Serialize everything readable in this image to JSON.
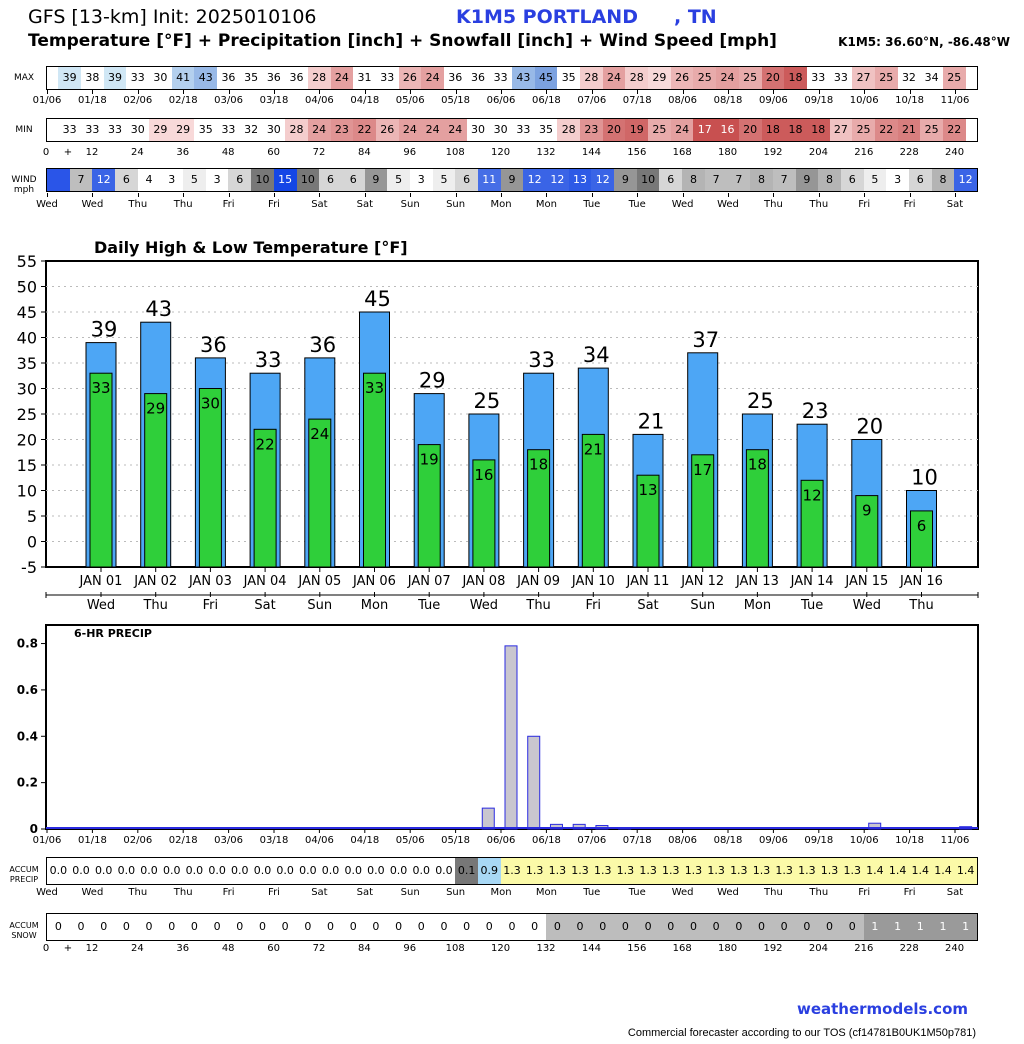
{
  "header": {
    "title": "GFS [13-km] Init: 2025010106",
    "station": "K1M5 PORTLAND",
    "state": ", TN",
    "subtitle": "Temperature [°F] + Precipitation [inch] + Snowfall [inch] + Wind Speed [mph]",
    "coords": "K1M5: 36.60°N, -86.48°W"
  },
  "strips": {
    "max_label": "MAX",
    "min_label": "MIN",
    "wind_label": "WIND mph",
    "max_values": [
      39,
      38,
      39,
      33,
      30,
      41,
      43,
      36,
      35,
      36,
      36,
      28,
      24,
      31,
      33,
      26,
      24,
      36,
      36,
      33,
      43,
      45,
      35,
      28,
      24,
      28,
      29,
      26,
      25,
      24,
      25,
      20,
      18,
      33,
      33,
      27,
      25,
      32,
      34,
      25
    ],
    "min_values": [
      33,
      33,
      33,
      30,
      29,
      29,
      35,
      33,
      32,
      30,
      28,
      24,
      23,
      22,
      26,
      24,
      24,
      24,
      30,
      30,
      33,
      35,
      28,
      23,
      20,
      19,
      25,
      24,
      17,
      16,
      20,
      18,
      18,
      18,
      27,
      25,
      22,
      21,
      25,
      22
    ],
    "wind_values": [
      null,
      7,
      12,
      6,
      4,
      3,
      5,
      3,
      6,
      10,
      15,
      10,
      6,
      6,
      9,
      5,
      3,
      5,
      6,
      11,
      9,
      12,
      12,
      13,
      12,
      9,
      10,
      6,
      8,
      7,
      7,
      8,
      7,
      9,
      8,
      6,
      5,
      3,
      6,
      8,
      12
    ],
    "date_ticks": [
      "01/06",
      "01/18",
      "02/06",
      "02/18",
      "03/06",
      "03/18",
      "04/06",
      "04/18",
      "05/06",
      "05/18",
      "06/06",
      "06/18",
      "07/06",
      "07/18",
      "08/06",
      "08/18",
      "09/06",
      "09/18",
      "10/06",
      "10/18",
      "11/06"
    ],
    "hour_ticks": [
      "0",
      "+",
      "12",
      "24",
      "36",
      "48",
      "60",
      "72",
      "84",
      "96",
      "108",
      "120",
      "132",
      "144",
      "156",
      "168",
      "180",
      "192",
      "204",
      "216",
      "228",
      "240"
    ],
    "day_ticks": [
      "Wed",
      "Wed",
      "Thu",
      "Thu",
      "Fri",
      "Fri",
      "Sat",
      "Sat",
      "Sun",
      "Sun",
      "Mon",
      "Mon",
      "Tue",
      "Tue",
      "Wed",
      "Wed",
      "Thu",
      "Thu",
      "Fri",
      "Fri",
      "Sat"
    ]
  },
  "accum": {
    "precip_label": "ACCUM PRECIP",
    "snow_label": "ACCUM SNOW",
    "precip_values": [
      "0.0",
      "0.0",
      "0.0",
      "0.0",
      "0.0",
      "0.0",
      "0.0",
      "0.0",
      "0.0",
      "0.0",
      "0.0",
      "0.0",
      "0.0",
      "0.0",
      "0.0",
      "0.0",
      "0.0",
      "0.0",
      "0.1",
      "0.9",
      "1.3",
      "1.3",
      "1.3",
      "1.3",
      "1.3",
      "1.3",
      "1.3",
      "1.3",
      "1.3",
      "1.3",
      "1.3",
      "1.3",
      "1.3",
      "1.3",
      "1.3",
      "1.3",
      "1.4",
      "1.4",
      "1.4",
      "1.4",
      "1.4"
    ],
    "snow_values": [
      "0",
      "0",
      "0",
      "0",
      "0",
      "0",
      "0",
      "0",
      "0",
      "0",
      "0",
      "0",
      "0",
      "0",
      "0",
      "0",
      "0",
      "0",
      "0",
      "0",
      "0",
      "0",
      "0",
      "0",
      "0",
      "0",
      "0",
      "0",
      "0",
      "0",
      "0",
      "0",
      "0",
      "0",
      "0",
      "0",
      "1",
      "1",
      "1",
      "1",
      "1"
    ]
  },
  "chart_data": [
    {
      "type": "bar",
      "title": "Daily High & Low Temperature [°F]",
      "categories": [
        "JAN 01",
        "JAN 02",
        "JAN 03",
        "JAN 04",
        "JAN 05",
        "JAN 06",
        "JAN 07",
        "JAN 08",
        "JAN 09",
        "JAN 10",
        "JAN 11",
        "JAN 12",
        "JAN 13",
        "JAN 14",
        "JAN 15",
        "JAN 16"
      ],
      "weekdays": [
        "Wed",
        "Thu",
        "Fri",
        "Sat",
        "Sun",
        "Mon",
        "Tue",
        "Wed",
        "Thu",
        "Fri",
        "Sat",
        "Sun",
        "Mon",
        "Tue",
        "Wed",
        "Thu"
      ],
      "series": [
        {
          "values": [
            39,
            43,
            36,
            33,
            36,
            45,
            29,
            25,
            33,
            34,
            21,
            37,
            25,
            23,
            20,
            10
          ],
          "color": "#4da6f5"
        },
        {
          "values": [
            33,
            29,
            30,
            22,
            24,
            33,
            19,
            16,
            18,
            21,
            13,
            17,
            18,
            12,
            9,
            6
          ],
          "color": "#2fcf3a"
        }
      ],
      "ylim": [
        -5,
        55
      ],
      "yticks": [
        55,
        50,
        45,
        40,
        35,
        30,
        25,
        20,
        15,
        10,
        5,
        0,
        -5
      ],
      "grid": true
    },
    {
      "type": "bar",
      "title": "6-HR PRECIP",
      "x": [
        "01/06",
        "01/12",
        "01/18",
        "02/00",
        "02/06",
        "02/12",
        "02/18",
        "03/00",
        "03/06",
        "03/12",
        "03/18",
        "04/00",
        "04/06",
        "04/12",
        "04/18",
        "05/00",
        "05/06",
        "05/12",
        "05/18",
        "06/00",
        "06/06",
        "06/12",
        "06/18",
        "07/00",
        "07/06",
        "07/12",
        "07/18",
        "08/00",
        "08/06",
        "08/12",
        "08/18",
        "09/00",
        "09/06",
        "09/12",
        "09/18",
        "10/00",
        "10/06",
        "10/12",
        "10/18",
        "11/00",
        "11/06"
      ],
      "values": [
        0,
        0,
        0,
        0,
        0,
        0,
        0,
        0,
        0,
        0,
        0,
        0,
        0,
        0,
        0,
        0,
        0,
        0,
        0,
        0.09,
        0.79,
        0.4,
        0.02,
        0.02,
        0.015,
        0.005,
        0,
        0,
        0,
        0,
        0,
        0,
        0,
        0,
        0,
        0,
        0.025,
        0,
        0,
        0,
        0.01
      ],
      "xticks": [
        "01/06",
        "01/18",
        "02/06",
        "02/18",
        "03/06",
        "03/18",
        "04/06",
        "04/18",
        "05/06",
        "05/18",
        "06/06",
        "06/18",
        "07/06",
        "07/18",
        "08/06",
        "08/18",
        "09/06",
        "09/18",
        "10/06",
        "10/18",
        "11/06"
      ],
      "yticks": [
        0,
        0.2,
        0.4,
        0.6,
        0.8
      ],
      "ylim": [
        0,
        0.88
      ],
      "color": "#c9c6cf"
    }
  ],
  "footer": {
    "link": "weathermodels.com",
    "note": "Commercial forecaster according to our TOS (cf14781B0UK1M50p781)"
  }
}
